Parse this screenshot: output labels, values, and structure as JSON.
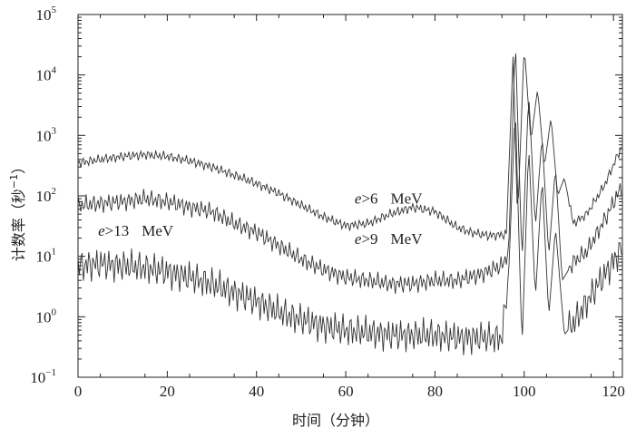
{
  "chart_data": {
    "type": "line",
    "title": "",
    "xlabel": "时间（分钟）",
    "ylabel": "计数率（秒",
    "ylabel_exp": "−1",
    "ylabel_close": "）",
    "xlim": [
      0,
      122
    ],
    "ylim": [
      0.1,
      100000
    ],
    "yscale": "log",
    "x_ticks": [
      "0",
      "20",
      "40",
      "60",
      "80",
      "100",
      "120"
    ],
    "x_tick_values": [
      0,
      20,
      40,
      60,
      80,
      100,
      120
    ],
    "y_ticks": [
      {
        "value": 0.1,
        "base": "10",
        "exp": "−1"
      },
      {
        "value": 1,
        "base": "10",
        "exp": "0"
      },
      {
        "value": 10,
        "base": "10",
        "exp": "1"
      },
      {
        "value": 100,
        "base": "10",
        "exp": "2"
      },
      {
        "value": 1000,
        "base": "10",
        "exp": "3"
      },
      {
        "value": 10000,
        "base": "10",
        "exp": "4"
      },
      {
        "value": 100000,
        "base": "10",
        "exp": "5"
      }
    ],
    "grid": false,
    "series": [
      {
        "name": "e>6 MeV",
        "x": [
          0,
          5,
          10,
          15,
          20,
          25,
          30,
          35,
          40,
          45,
          50,
          55,
          60,
          65,
          70,
          75,
          80,
          85,
          88,
          92,
          96,
          97.5,
          98.5,
          100,
          101.5,
          103,
          104.5,
          106,
          107.5,
          109,
          111,
          114,
          118,
          122
        ],
        "y": [
          350,
          400,
          450,
          480,
          450,
          380,
          300,
          220,
          160,
          110,
          70,
          45,
          32,
          35,
          50,
          65,
          55,
          30,
          25,
          22,
          23,
          20000,
          40,
          30000,
          800,
          6000,
          300,
          2000,
          100,
          200,
          35,
          50,
          150,
          700
        ]
      },
      {
        "name": "e>9 MeV",
        "x": [
          0,
          5,
          10,
          15,
          20,
          25,
          30,
          35,
          40,
          45,
          50,
          55,
          60,
          65,
          70,
          75,
          80,
          85,
          90,
          95,
          96.5,
          98,
          99.5,
          101,
          102.5,
          104,
          105.5,
          107,
          108.5,
          111,
          114,
          118,
          122
        ],
        "y": [
          70,
          75,
          80,
          90,
          80,
          65,
          55,
          35,
          25,
          15,
          9,
          6,
          4.5,
          4,
          3.5,
          3.5,
          4,
          4,
          5,
          7,
          12,
          40000,
          8,
          5000,
          30,
          1000,
          10,
          300,
          4,
          8,
          12,
          40,
          150
        ]
      },
      {
        "name": "e>13 MeV",
        "x": [
          0,
          5,
          10,
          15,
          20,
          25,
          30,
          35,
          40,
          45,
          50,
          55,
          60,
          65,
          70,
          75,
          80,
          85,
          90,
          95,
          96.5,
          98,
          99.5,
          101,
          102.5,
          104,
          105.5,
          107,
          109,
          112,
          116,
          120,
          122
        ],
        "y": [
          7,
          7.5,
          7,
          6.5,
          5.5,
          4.5,
          3.5,
          2.5,
          1.8,
          1.2,
          0.9,
          0.7,
          0.6,
          0.55,
          0.5,
          0.5,
          0.5,
          0.45,
          0.45,
          0.45,
          5,
          3000,
          0.3,
          700,
          2,
          200,
          1,
          30,
          0.5,
          1,
          3,
          8,
          15
        ]
      }
    ],
    "annotations": [
      {
        "prefix": "e",
        "rest": ">6",
        "unit": "MeV",
        "x": 62,
        "y": 75
      },
      {
        "prefix": "e",
        "rest": ">9",
        "unit": "MeV",
        "x": 62,
        "y": 16
      },
      {
        "prefix": "e",
        "rest": ">13",
        "unit": "MeV",
        "x": 4.5,
        "y": 22
      }
    ]
  }
}
